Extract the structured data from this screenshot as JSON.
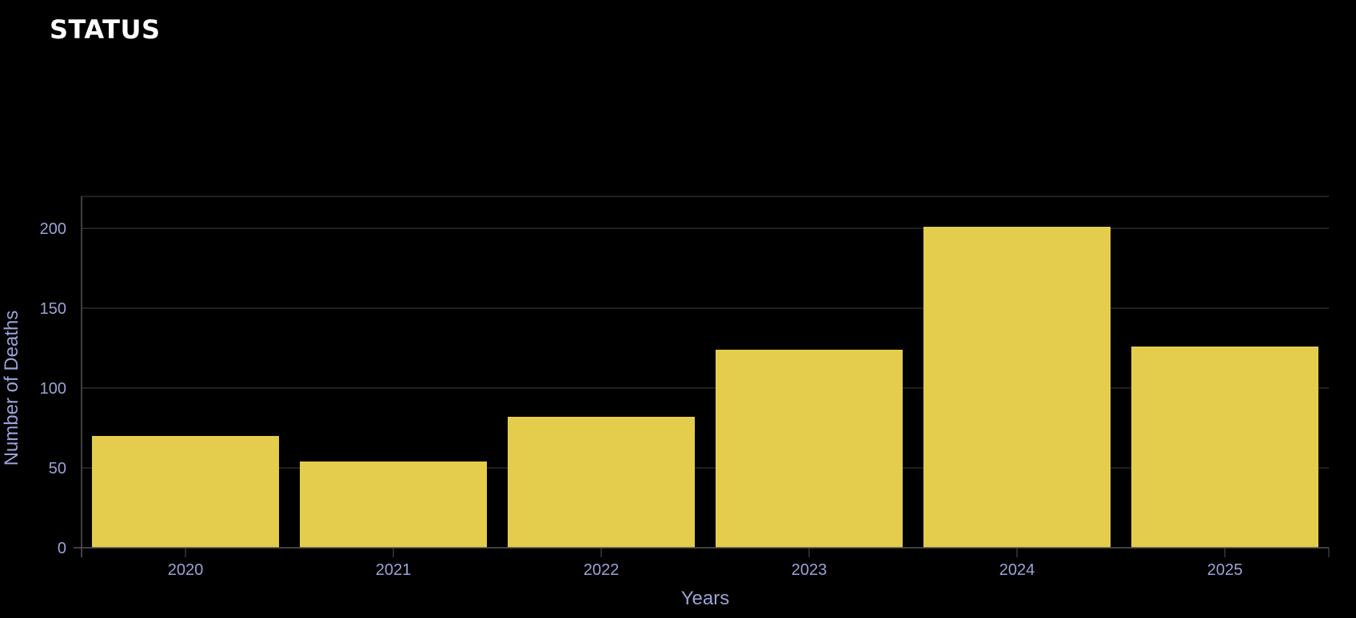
{
  "header": {
    "title": "STATUS"
  },
  "colors": {
    "background": "#000000",
    "bar": "#e4cc4c",
    "grid": "#2a2a2a",
    "axis": "#555555",
    "label": "#9aa3d6"
  },
  "chart_data": {
    "type": "bar",
    "categories": [
      "2020",
      "2021",
      "2022",
      "2023",
      "2024",
      "2025"
    ],
    "values": [
      70,
      54,
      82,
      124,
      201,
      126
    ],
    "xlabel": "Years",
    "ylabel": "Number of Deaths",
    "ylim": [
      0,
      220
    ],
    "yticks": [
      0,
      50,
      100,
      150,
      200
    ],
    "grid": true,
    "legend": "none"
  }
}
